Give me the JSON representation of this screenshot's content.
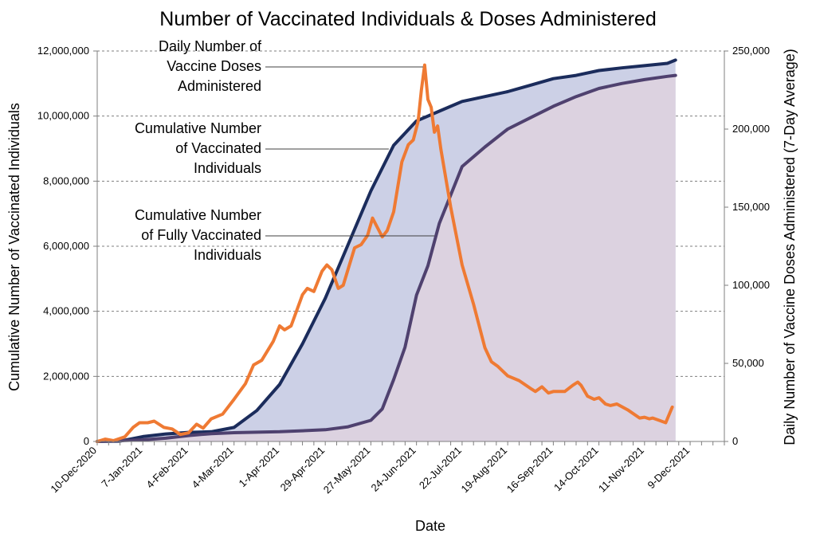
{
  "chart_data": {
    "type": "line",
    "title": "Number of Vaccinated Individuals & Doses Administered",
    "xlabel": "Date",
    "ylabel_left": "Cumulative Number of Vaccinated Individuals",
    "ylabel_right": "Daily Number of Vaccine Doses Administered (7-Day Average)",
    "ylim_left": [
      0,
      12000000
    ],
    "ylim_right": [
      0,
      250000
    ],
    "xlim": [
      "2020-12-10",
      "2021-12-30"
    ],
    "grid": true,
    "y_left_ticks": [
      "0",
      "2,000,000",
      "4,000,000",
      "6,000,000",
      "8,000,000",
      "10,000,000",
      "12,000,000"
    ],
    "y_right_ticks": [
      "0",
      "50,000",
      "100,000",
      "150,000",
      "200,000",
      "250,000"
    ],
    "x_ticks": [
      {
        "date": "2020-12-10",
        "label": "10-Dec-2020"
      },
      {
        "date": "2021-01-07",
        "label": "7-Jan-2021"
      },
      {
        "date": "2021-02-04",
        "label": "4-Feb-2021"
      },
      {
        "date": "2021-03-04",
        "label": "4-Mar-2021"
      },
      {
        "date": "2021-04-01",
        "label": "1-Apr-2021"
      },
      {
        "date": "2021-04-29",
        "label": "29-Apr-2021"
      },
      {
        "date": "2021-05-27",
        "label": "27-May-2021"
      },
      {
        "date": "2021-06-24",
        "label": "24-Jun-2021"
      },
      {
        "date": "2021-07-22",
        "label": "22-Jul-2021"
      },
      {
        "date": "2021-08-19",
        "label": "19-Aug-2021"
      },
      {
        "date": "2021-09-16",
        "label": "16-Sep-2021"
      },
      {
        "date": "2021-10-14",
        "label": "14-Oct-2021"
      },
      {
        "date": "2021-11-11",
        "label": "11-Nov-2021"
      },
      {
        "date": "2021-12-09",
        "label": "9-Dec-2021"
      }
    ],
    "series": [
      {
        "name": "Cumulative Number of Vaccinated Individuals",
        "axis": "left",
        "color": "#1b2c5c",
        "fill": "#ccd0e6",
        "points": [
          [
            "2020-12-10",
            0
          ],
          [
            "2020-12-24",
            10000
          ],
          [
            "2021-01-07",
            150000
          ],
          [
            "2021-01-21",
            230000
          ],
          [
            "2021-02-04",
            280000
          ],
          [
            "2021-02-18",
            300000
          ],
          [
            "2021-03-04",
            430000
          ],
          [
            "2021-03-18",
            950000
          ],
          [
            "2021-04-01",
            1750000
          ],
          [
            "2021-04-15",
            3000000
          ],
          [
            "2021-04-29",
            4400000
          ],
          [
            "2021-05-13",
            6050000
          ],
          [
            "2021-05-27",
            7700000
          ],
          [
            "2021-06-10",
            9100000
          ],
          [
            "2021-06-24",
            9850000
          ],
          [
            "2021-07-08",
            10150000
          ],
          [
            "2021-07-22",
            10450000
          ],
          [
            "2021-08-05",
            10600000
          ],
          [
            "2021-08-19",
            10750000
          ],
          [
            "2021-09-02",
            10950000
          ],
          [
            "2021-09-16",
            11150000
          ],
          [
            "2021-09-30",
            11250000
          ],
          [
            "2021-10-14",
            11400000
          ],
          [
            "2021-10-28",
            11480000
          ],
          [
            "2021-11-11",
            11550000
          ],
          [
            "2021-11-25",
            11620000
          ],
          [
            "2021-11-30",
            11720000
          ]
        ]
      },
      {
        "name": "Cumulative Number of Fully Vaccinated Individuals",
        "axis": "left",
        "color": "#4f416f",
        "fill": "#dcd2e0",
        "points": [
          [
            "2020-12-10",
            0
          ],
          [
            "2021-01-07",
            50000
          ],
          [
            "2021-01-21",
            100000
          ],
          [
            "2021-02-04",
            180000
          ],
          [
            "2021-02-18",
            240000
          ],
          [
            "2021-03-04",
            270000
          ],
          [
            "2021-04-01",
            300000
          ],
          [
            "2021-04-29",
            360000
          ],
          [
            "2021-05-13",
            450000
          ],
          [
            "2021-05-27",
            650000
          ],
          [
            "2021-06-03",
            1000000
          ],
          [
            "2021-06-10",
            1900000
          ],
          [
            "2021-06-17",
            2900000
          ],
          [
            "2021-06-24",
            4500000
          ],
          [
            "2021-07-01",
            5400000
          ],
          [
            "2021-07-08",
            6700000
          ],
          [
            "2021-07-22",
            8450000
          ],
          [
            "2021-08-05",
            9050000
          ],
          [
            "2021-08-19",
            9600000
          ],
          [
            "2021-09-02",
            9950000
          ],
          [
            "2021-09-16",
            10300000
          ],
          [
            "2021-09-30",
            10600000
          ],
          [
            "2021-10-14",
            10850000
          ],
          [
            "2021-10-28",
            11000000
          ],
          [
            "2021-11-11",
            11120000
          ],
          [
            "2021-11-25",
            11220000
          ],
          [
            "2021-11-30",
            11250000
          ]
        ]
      },
      {
        "name": "Daily Number of Vaccine Doses Administered",
        "axis": "right",
        "color": "#ef7a33",
        "points": [
          [
            "2020-12-10",
            0
          ],
          [
            "2020-12-15",
            1500
          ],
          [
            "2020-12-20",
            500
          ],
          [
            "2020-12-27",
            3000
          ],
          [
            "2021-01-01",
            9000
          ],
          [
            "2021-01-05",
            12000
          ],
          [
            "2021-01-10",
            12000
          ],
          [
            "2021-01-14",
            13000
          ],
          [
            "2021-01-20",
            9000
          ],
          [
            "2021-01-25",
            8000
          ],
          [
            "2021-01-30",
            4500
          ],
          [
            "2021-02-04",
            5500
          ],
          [
            "2021-02-09",
            11000
          ],
          [
            "2021-02-13",
            8500
          ],
          [
            "2021-02-18",
            14500
          ],
          [
            "2021-02-25",
            17500
          ],
          [
            "2021-03-04",
            27000
          ],
          [
            "2021-03-11",
            37000
          ],
          [
            "2021-03-16",
            49000
          ],
          [
            "2021-03-21",
            52000
          ],
          [
            "2021-03-28",
            64000
          ],
          [
            "2021-04-01",
            74000
          ],
          [
            "2021-04-04",
            71500
          ],
          [
            "2021-04-08",
            74000
          ],
          [
            "2021-04-15",
            94000
          ],
          [
            "2021-04-18",
            98000
          ],
          [
            "2021-04-22",
            96000
          ],
          [
            "2021-04-27",
            109000
          ],
          [
            "2021-04-30",
            113000
          ],
          [
            "2021-05-03",
            110000
          ],
          [
            "2021-05-07",
            98000
          ],
          [
            "2021-05-10",
            100000
          ],
          [
            "2021-05-17",
            124000
          ],
          [
            "2021-05-21",
            126000
          ],
          [
            "2021-05-25",
            132000
          ],
          [
            "2021-05-28",
            143000
          ],
          [
            "2021-05-31",
            137000
          ],
          [
            "2021-06-03",
            131000
          ],
          [
            "2021-06-06",
            135000
          ],
          [
            "2021-06-10",
            147000
          ],
          [
            "2021-06-15",
            179000
          ],
          [
            "2021-06-19",
            190000
          ],
          [
            "2021-06-22",
            193000
          ],
          [
            "2021-06-25",
            205000
          ],
          [
            "2021-06-27",
            225000
          ],
          [
            "2021-06-29",
            241000
          ],
          [
            "2021-07-01",
            219000
          ],
          [
            "2021-07-03",
            214000
          ],
          [
            "2021-07-05",
            198000
          ],
          [
            "2021-07-07",
            202000
          ],
          [
            "2021-07-09",
            187000
          ],
          [
            "2021-07-15",
            150000
          ],
          [
            "2021-07-22",
            113000
          ],
          [
            "2021-07-29",
            88000
          ],
          [
            "2021-08-05",
            60000
          ],
          [
            "2021-08-09",
            51000
          ],
          [
            "2021-08-13",
            48000
          ],
          [
            "2021-08-19",
            42000
          ],
          [
            "2021-08-26",
            39000
          ],
          [
            "2021-09-02",
            34000
          ],
          [
            "2021-09-05",
            32000
          ],
          [
            "2021-09-09",
            35000
          ],
          [
            "2021-09-13",
            31000
          ],
          [
            "2021-09-16",
            32000
          ],
          [
            "2021-09-23",
            32000
          ],
          [
            "2021-09-28",
            36000
          ],
          [
            "2021-10-01",
            38000
          ],
          [
            "2021-10-03",
            36000
          ],
          [
            "2021-10-07",
            29000
          ],
          [
            "2021-10-11",
            27000
          ],
          [
            "2021-10-14",
            28000
          ],
          [
            "2021-10-18",
            24000
          ],
          [
            "2021-10-21",
            23000
          ],
          [
            "2021-10-25",
            24000
          ],
          [
            "2021-11-01",
            20000
          ],
          [
            "2021-11-08",
            15000
          ],
          [
            "2021-11-11",
            15500
          ],
          [
            "2021-11-14",
            14500
          ],
          [
            "2021-11-16",
            15000
          ],
          [
            "2021-11-20",
            13500
          ],
          [
            "2021-11-24",
            12000
          ],
          [
            "2021-11-28",
            22000
          ]
        ]
      }
    ],
    "annotations": [
      {
        "lines": [
          "Daily Number of",
          "Vaccine Doses",
          "Administered"
        ],
        "series": 2,
        "target_date": "2021-06-28",
        "target_value": 241000,
        "axis": "right"
      },
      {
        "lines": [
          "Cumulative Number",
          "of Vaccinated",
          "Individuals"
        ],
        "series": 0,
        "target_date": "2021-06-07",
        "target_value": 9000000,
        "axis": "left"
      },
      {
        "lines": [
          "Cumulative Number",
          "of Fully Vaccinated",
          "Individuals"
        ],
        "series": 1,
        "target_date": "2021-07-05",
        "target_value": 6250000,
        "axis": "left"
      }
    ]
  }
}
